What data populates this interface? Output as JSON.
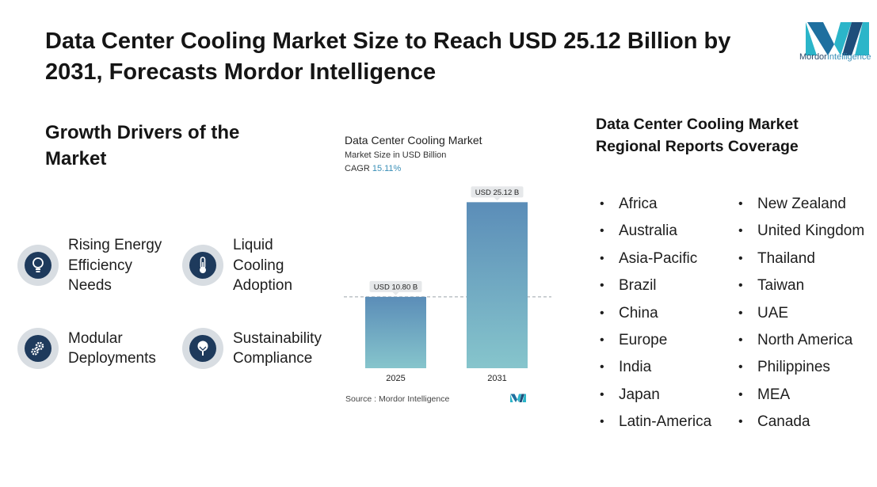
{
  "header": {
    "title": "Data Center Cooling Market Size to Reach USD 25.12 Billion by 2031, Forecasts Mordor Intelligence",
    "logo_text_bold": "Mordor",
    "logo_text_light": "Intelligence"
  },
  "drivers": {
    "heading": "Growth Drivers of the Market",
    "items": [
      {
        "label": "Rising Energy\nEfficiency\nNeeds",
        "icon": "lightbulb-icon"
      },
      {
        "label": "Liquid\nCooling\nAdoption",
        "icon": "thermometer-icon"
      },
      {
        "label": "Modular\nDeployments",
        "icon": "gears-icon"
      },
      {
        "label": "Sustainability\nCompliance",
        "icon": "tree-icon"
      }
    ]
  },
  "chart_data": {
    "type": "bar",
    "title": "Data Center Cooling Market",
    "subtitle": "Market Size in USD Billion",
    "cagr_label": "CAGR",
    "cagr_value": "15.11%",
    "categories": [
      "2025",
      "2031"
    ],
    "values": [
      10.8,
      25.12
    ],
    "data_labels": [
      "USD 10.80 B",
      "USD 25.12 B"
    ],
    "ylim": [
      0,
      26
    ],
    "reference_line": "dashed line at 2025 value",
    "source": "Source :  Mordor Intelligence",
    "colors": {
      "bar_top": "#5b8db8",
      "bar_bottom": "#86c5cc",
      "label_bg": "#e6e8ea"
    }
  },
  "regions": {
    "heading": "Data Center Cooling Market Regional Reports Coverage",
    "left": [
      "Africa",
      "Australia",
      "Asia-Pacific",
      "Brazil",
      "China",
      "Europe",
      "India",
      "Japan",
      "Latin-America"
    ],
    "right": [
      "New Zealand",
      "United Kingdom",
      "Thailand",
      "Taiwan",
      "UAE",
      "North America",
      "Philippines",
      "MEA",
      "Canada"
    ]
  }
}
